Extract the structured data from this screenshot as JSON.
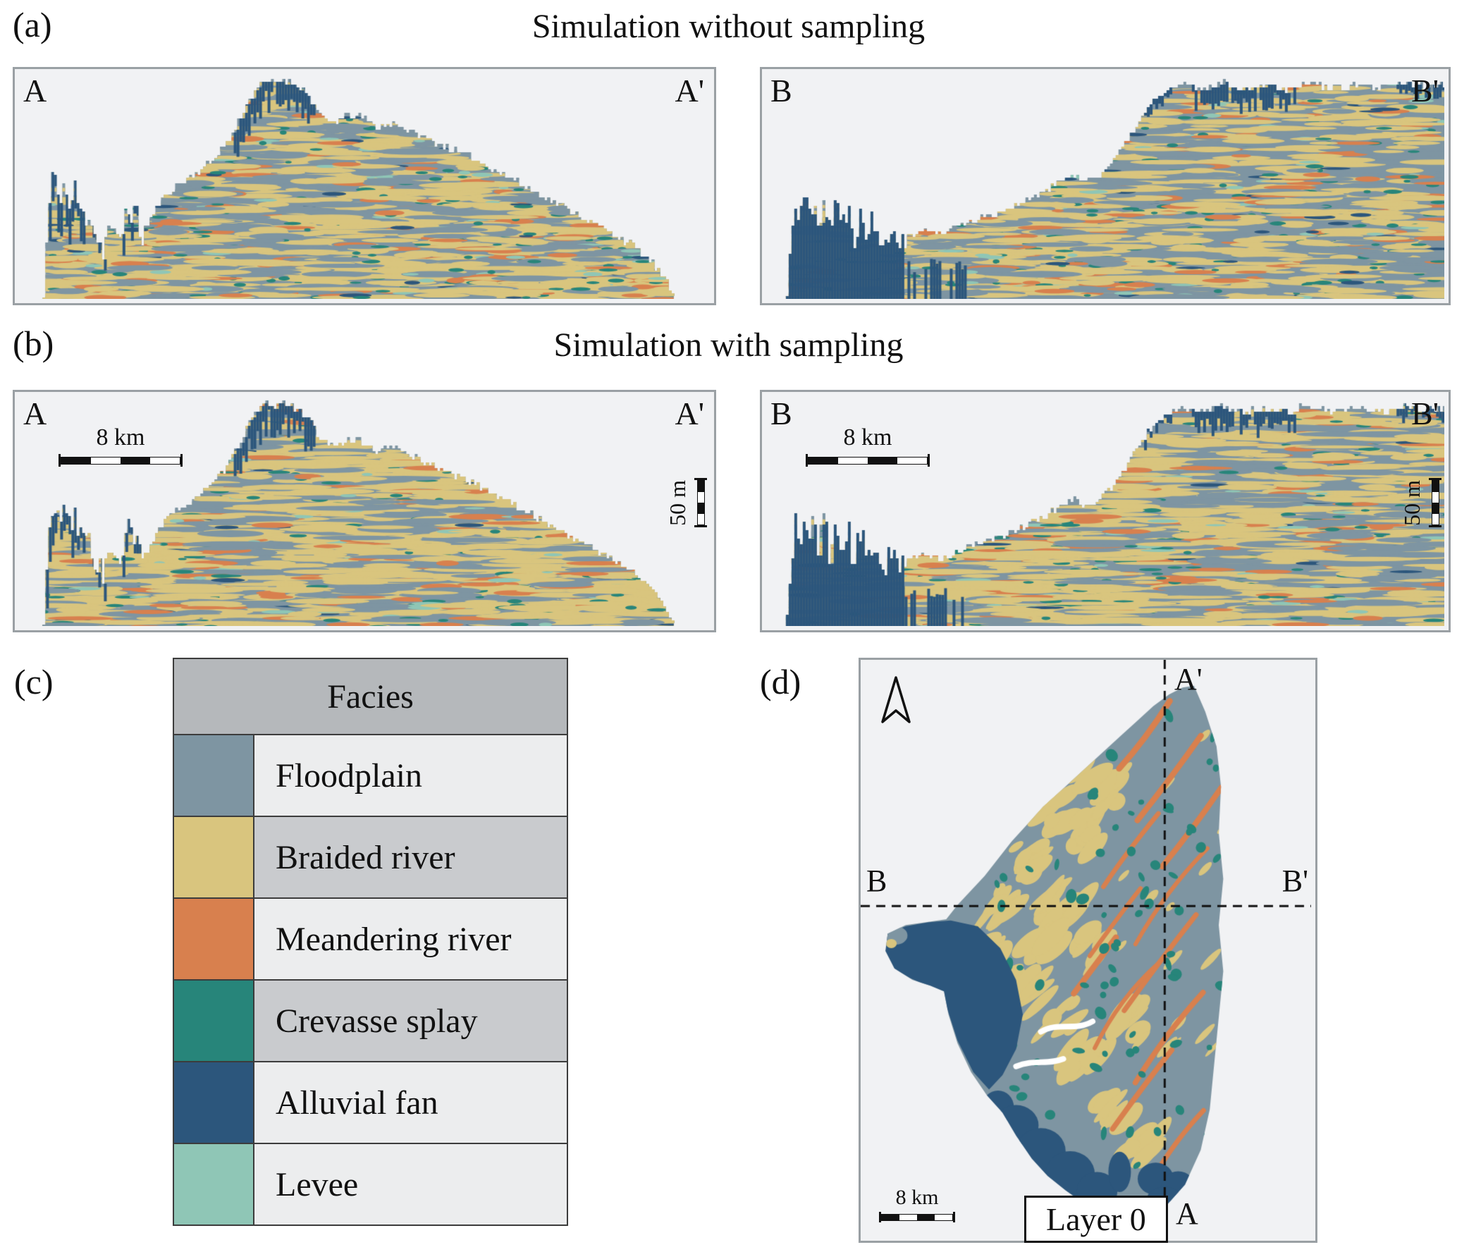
{
  "colors": {
    "canvas_bg": "#f1f2f4",
    "box_border": "#9aa0a4",
    "dash_line": "#111111"
  },
  "panel_a": {
    "tag": "(a)",
    "title": "Simulation without sampling",
    "left": {
      "start": "A",
      "end": "A'"
    },
    "right": {
      "start": "B",
      "end": "B'"
    }
  },
  "panel_b": {
    "tag": "(b)",
    "title": "Simulation with sampling",
    "left": {
      "start": "A",
      "end": "A'"
    },
    "right": {
      "start": "B",
      "end": "B'"
    },
    "h_scale_label": "8 km",
    "v_scale_label": "50 m"
  },
  "panel_c": {
    "tag": "(c)",
    "header": "Facies",
    "entries": [
      {
        "key": "floodplain",
        "label": "Floodplain",
        "color": "#7e95a2"
      },
      {
        "key": "braided",
        "label": "Braided river",
        "color": "#d9c57e"
      },
      {
        "key": "meandering",
        "label": "Meandering river",
        "color": "#d8804e"
      },
      {
        "key": "crevasse",
        "label": "Crevasse splay",
        "color": "#27857a"
      },
      {
        "key": "alluvial",
        "label": "Alluvial fan",
        "color": "#2c567c"
      },
      {
        "key": "levee",
        "label": "Levee",
        "color": "#8fc6b6"
      }
    ]
  },
  "panel_d": {
    "tag": "(d)",
    "labels": {
      "a_top": "A'",
      "a_bottom": "A",
      "b_left": "B",
      "b_right": "B'"
    },
    "scale_label": "8 km",
    "layer_label": "Layer 0"
  }
}
